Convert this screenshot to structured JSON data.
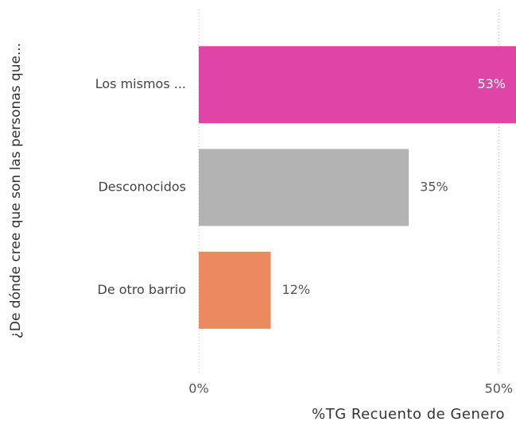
{
  "chart_data": {
    "type": "bar",
    "orientation": "horizontal",
    "x_label": "%TG Recuento de Genero",
    "y_label": "¿De dónde cree que son las personas que...",
    "categories": [
      "Los mismos ...",
      "Desconocidos",
      "De otro barrio"
    ],
    "values": [
      53,
      35,
      12
    ],
    "value_labels": [
      "53%",
      "35%",
      "12%"
    ],
    "colors": [
      "#e044a7",
      "#b3b3b3",
      "#eb895f"
    ],
    "xlim": [
      0,
      53
    ],
    "xticks": [
      {
        "value": 0,
        "label": "0%"
      },
      {
        "value": 50,
        "label": "50%"
      }
    ],
    "grid": true
  }
}
